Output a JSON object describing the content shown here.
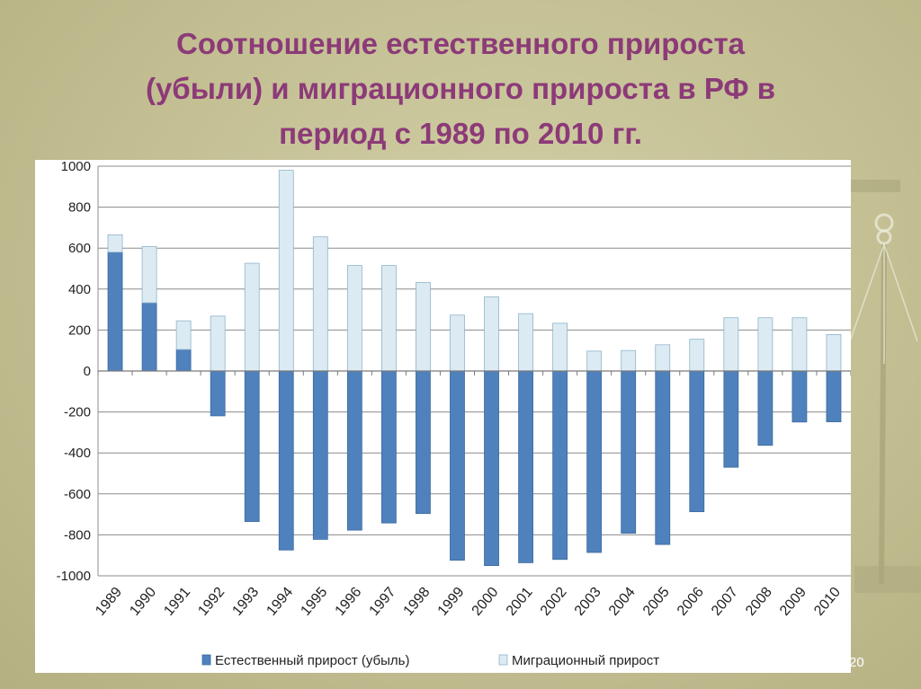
{
  "slide": {
    "title_lines": [
      "Соотношение естественного прироста",
      "(убыли) и миграционного прироста в РФ в",
      "период  с 1989 по 2010 гг."
    ],
    "page_number": "20"
  },
  "colors": {
    "natural": "#4f81bd",
    "migration": "#dcebf3",
    "migration_border": "#8fb3c9",
    "title": "#8c3a78"
  },
  "chart_data": {
    "type": "bar",
    "stacking": "per-sign",
    "title": "",
    "xlabel": "",
    "ylabel": "",
    "ylim": [
      -1000,
      1000
    ],
    "yticks": [
      1000,
      800,
      600,
      400,
      200,
      0,
      -200,
      -400,
      -600,
      -800,
      -1000
    ],
    "ytick_labels": [
      "1000",
      "800",
      "600",
      "400",
      "200",
      "0",
      "-200",
      "-400",
      "-600",
      "-800",
      "-1000"
    ],
    "grid": true,
    "legend_position": "bottom",
    "categories": [
      "1989",
      "1990",
      "1991",
      "1992",
      "1993",
      "1994",
      "1995",
      "1996",
      "1997",
      "1998",
      "1999",
      "2000",
      "2001",
      "2002",
      "2003",
      "2004",
      "2005",
      "2006",
      "2007",
      "2008",
      "2009",
      "2010"
    ],
    "series": [
      {
        "name": "Естественный прирост (убыль)",
        "values": [
          580,
          333,
          105,
          -219,
          -735,
          -874,
          -822,
          -777,
          -742,
          -696,
          -924,
          -950,
          -936,
          -920,
          -886,
          -792,
          -847,
          -687,
          -470,
          -363,
          -249,
          -248
        ]
      },
      {
        "name": "Миграционный прирост",
        "values": [
          85,
          275,
          140,
          268,
          526,
          980,
          655,
          515,
          515,
          432,
          273,
          362,
          280,
          233,
          97,
          100,
          128,
          155,
          260,
          260,
          260,
          178
        ]
      }
    ]
  }
}
